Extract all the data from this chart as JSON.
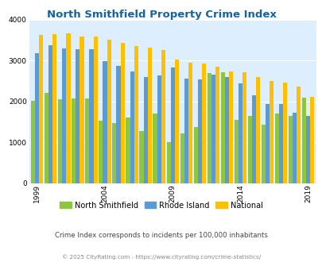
{
  "title": "North Smithfield Property Crime Index",
  "title_color": "#1464a0",
  "subtitle": "Crime Index corresponds to incidents per 100,000 inhabitants",
  "footer": "© 2025 CityRating.com - https://www.cityrating.com/crime-statistics/",
  "years": [
    1999,
    2000,
    2001,
    2002,
    2003,
    2004,
    2005,
    2006,
    2007,
    2008,
    2009,
    2010,
    2011,
    2012,
    2013,
    2014,
    2015,
    2016,
    2017,
    2018,
    2019
  ],
  "north_smithfield": [
    2010,
    2210,
    2060,
    2070,
    2070,
    1540,
    1480,
    1610,
    1280,
    1710,
    1000,
    1230,
    1380,
    2700,
    2720,
    1560,
    1640,
    1430,
    1700,
    1650,
    2090
  ],
  "rhode_island": [
    3190,
    3370,
    3290,
    3280,
    3280,
    2990,
    2870,
    2730,
    2600,
    2640,
    2830,
    2560,
    2550,
    2660,
    2600,
    2450,
    2160,
    1930,
    1930,
    1730,
    1650
  ],
  "national": [
    3620,
    3640,
    3660,
    3590,
    3590,
    3510,
    3440,
    3350,
    3310,
    3250,
    3030,
    2950,
    2930,
    2860,
    2730,
    2720,
    2600,
    2500,
    2460,
    2360,
    2110
  ],
  "north_smithfield_color": "#8dc63f",
  "rhode_island_color": "#5b9bd5",
  "national_color": "#ffc000",
  "background_color": "#ddeeff",
  "ylim": [
    0,
    4000
  ],
  "yticks": [
    0,
    1000,
    2000,
    3000,
    4000
  ],
  "legend_labels": [
    "North Smithfield",
    "Rhode Island",
    "National"
  ],
  "label_years": [
    1999,
    2004,
    2009,
    2014,
    2019
  ],
  "subtitle_color": "#444444",
  "footer_color": "#888888"
}
